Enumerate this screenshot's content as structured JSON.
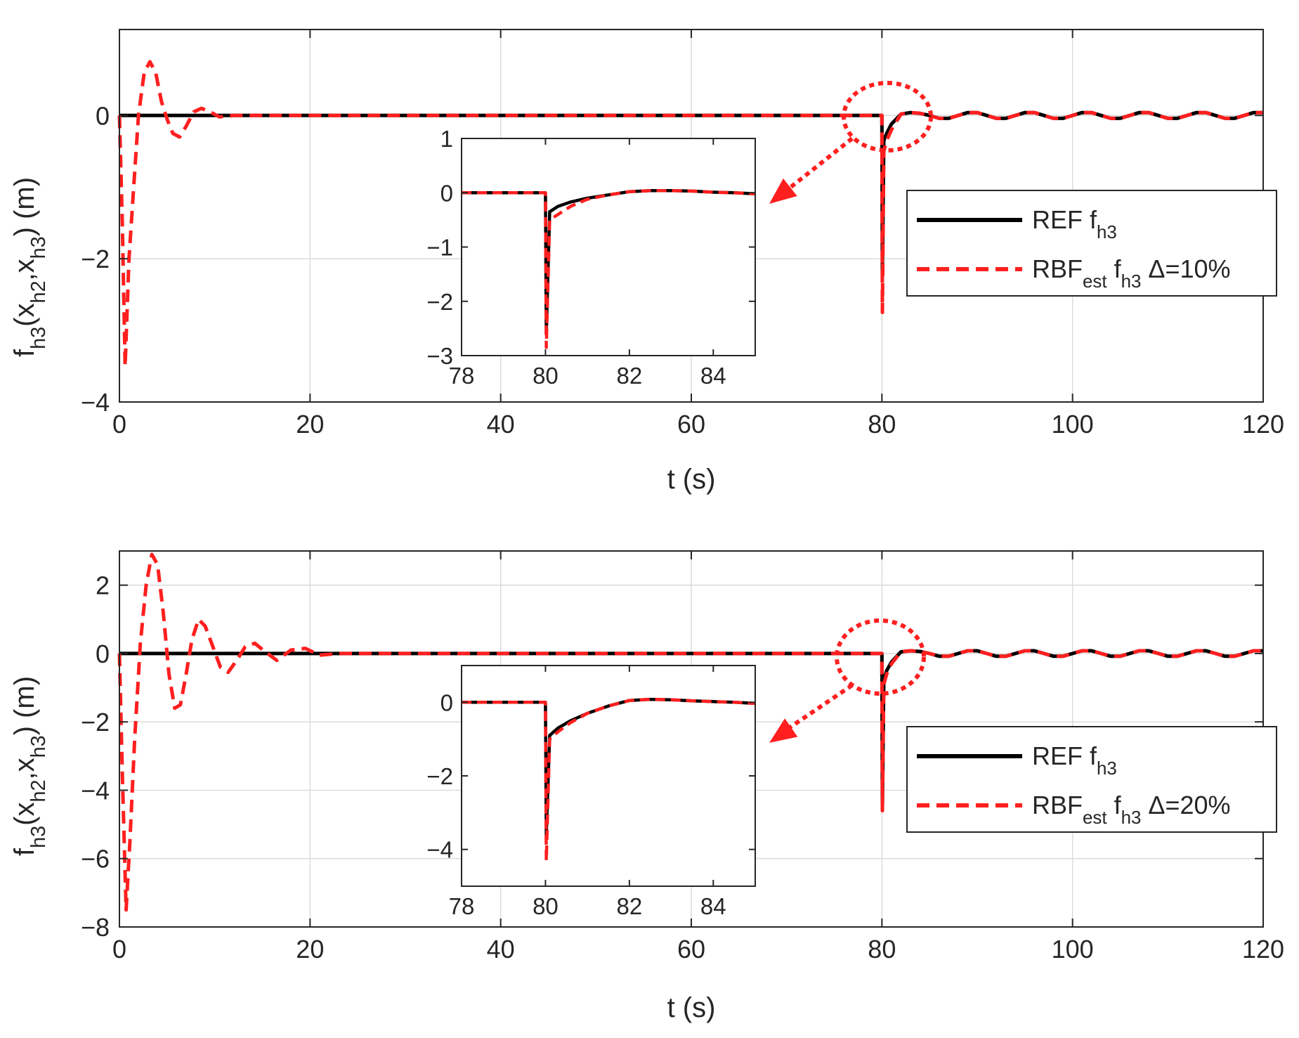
{
  "colors": {
    "ref": "#000000",
    "est": "#ff1f1f",
    "axis": "#262626",
    "grid": "#d9d9d9"
  },
  "chart_data": [
    {
      "type": "line",
      "panel": "top",
      "xlabel": "t (s)",
      "ylabel": {
        "main": "f",
        "sub1": "h3",
        "mid1": "(x",
        "sub2": "h2",
        "mid2": ",x",
        "sub3": "h3",
        "tail": ") (m)"
      },
      "xlim": [
        0,
        120
      ],
      "ylim": [
        -4,
        1.2
      ],
      "xticks": [
        0,
        20,
        40,
        60,
        80,
        100,
        120
      ],
      "yticks": [
        -4,
        -2,
        0
      ],
      "xtick_labels": [
        "0",
        "20",
        "40",
        "60",
        "80",
        "100",
        "120"
      ],
      "ytick_labels": [
        "−4",
        "−2",
        "0"
      ],
      "grid": true,
      "legend": {
        "placement": "right",
        "items": [
          {
            "key": "ref",
            "main": "REF f",
            "sub": "h3",
            "tail": ""
          },
          {
            "key": "est",
            "main": "RBF",
            "sub": "est",
            "main2": " f",
            "sub2": "h3",
            "tail": " Δ=10%"
          }
        ]
      },
      "series": [
        {
          "key": "ref",
          "name": "REF f_h3",
          "style": "solid",
          "x": [
            0,
            79.9,
            80.0,
            80.05,
            80.2,
            80.5,
            81,
            82,
            83,
            84,
            85,
            86,
            87,
            88,
            89,
            90,
            91,
            92,
            93,
            94,
            95,
            96,
            97,
            98,
            99,
            100,
            101,
            102,
            103,
            104,
            105,
            106,
            107,
            108,
            109,
            110,
            111,
            112,
            113,
            114,
            115,
            116,
            117,
            118,
            119,
            120
          ],
          "y": [
            0,
            0,
            0,
            -2.2,
            -0.35,
            -0.25,
            -0.12,
            0.02,
            0.04,
            0.03,
            0.0,
            -0.04,
            -0.04,
            0.0,
            0.04,
            0.04,
            0.0,
            -0.04,
            -0.04,
            0.0,
            0.04,
            0.04,
            0.0,
            -0.04,
            -0.04,
            0.0,
            0.04,
            0.04,
            0.0,
            -0.04,
            -0.04,
            0.0,
            0.04,
            0.04,
            0.0,
            -0.04,
            -0.04,
            0.0,
            0.04,
            0.04,
            0.0,
            -0.04,
            -0.04,
            0.0,
            0.04,
            0.04
          ]
        },
        {
          "key": "est",
          "name": "RBF_est f_h3 Δ=10%",
          "style": "dashed",
          "x": [
            0,
            0.3,
            0.6,
            1.0,
            1.5,
            2.0,
            2.6,
            3.2,
            3.8,
            4.4,
            5.0,
            5.6,
            6.3,
            7.0,
            7.8,
            8.6,
            9.5,
            10.5,
            12,
            14,
            79.9,
            80.0,
            80.05,
            80.2,
            80.5,
            81,
            82,
            83,
            84,
            85,
            86,
            87,
            88,
            89,
            90,
            91,
            92,
            93,
            94,
            95,
            96,
            97,
            98,
            99,
            100,
            101,
            102,
            103,
            104,
            105,
            106,
            107,
            108,
            109,
            110,
            111,
            112,
            113,
            114,
            115,
            116,
            117,
            118,
            119,
            120
          ],
          "y": [
            0,
            -1.5,
            -3.5,
            -2.0,
            -1.0,
            0.0,
            0.6,
            0.75,
            0.6,
            0.2,
            -0.05,
            -0.25,
            -0.3,
            -0.15,
            0.05,
            0.1,
            0.05,
            -0.02,
            0.0,
            0.0,
            0.0,
            0.0,
            -2.75,
            -0.5,
            -0.35,
            -0.2,
            0.02,
            0.04,
            0.03,
            0.0,
            -0.04,
            -0.04,
            0.0,
            0.04,
            0.04,
            0.0,
            -0.04,
            -0.04,
            0.0,
            0.04,
            0.04,
            0.0,
            -0.04,
            -0.04,
            0.0,
            0.04,
            0.04,
            0.0,
            -0.04,
            -0.04,
            0.0,
            0.04,
            0.04,
            0.0,
            -0.04,
            -0.04,
            0.0,
            0.04,
            0.04,
            0.0,
            -0.04,
            -0.04,
            0.0,
            0.04,
            0.04
          ]
        }
      ],
      "inset": {
        "xlim": [
          78,
          85
        ],
        "ylim": [
          -3,
          1
        ],
        "xticks": [
          78,
          80,
          82,
          84
        ],
        "yticks": [
          -3,
          -2,
          -1,
          0,
          1
        ],
        "xtick_labels": [
          "78",
          "80",
          "82",
          "84"
        ],
        "ytick_labels": [
          "−3",
          "−2",
          "−1",
          "0",
          "1"
        ],
        "series": [
          {
            "key": "ref",
            "x": [
              78,
              79.98,
              80.0,
              80.02,
              80.1,
              80.3,
              80.6,
              81.0,
              81.5,
              82.0,
              82.5,
              83.0,
              83.5,
              84.0,
              84.5,
              85.0
            ],
            "y": [
              0,
              0,
              0,
              -2.6,
              -0.35,
              -0.25,
              -0.17,
              -0.1,
              -0.04,
              0.02,
              0.04,
              0.04,
              0.03,
              0.01,
              0.0,
              -0.02
            ]
          },
          {
            "key": "est",
            "x": [
              78,
              79.98,
              80.0,
              80.02,
              80.1,
              80.3,
              80.6,
              81.0,
              81.5,
              82.0,
              82.5,
              83.0,
              83.5,
              84.0,
              84.5,
              85.0
            ],
            "y": [
              0,
              0,
              0,
              -2.85,
              -0.5,
              -0.4,
              -0.25,
              -0.12,
              -0.04,
              0.02,
              0.04,
              0.04,
              0.03,
              0.01,
              0.0,
              -0.02
            ]
          }
        ]
      }
    },
    {
      "type": "line",
      "panel": "bottom",
      "xlabel": "t (s)",
      "ylabel": {
        "main": "f",
        "sub1": "h3",
        "mid1": "(x",
        "sub2": "h2",
        "mid2": ",x",
        "sub3": "h3",
        "tail": ") (m)"
      },
      "xlim": [
        0,
        120
      ],
      "ylim": [
        -8,
        3
      ],
      "xticks": [
        0,
        20,
        40,
        60,
        80,
        100,
        120
      ],
      "yticks": [
        -8,
        -6,
        -4,
        -2,
        0,
        2
      ],
      "xtick_labels": [
        "0",
        "20",
        "40",
        "60",
        "80",
        "100",
        "120"
      ],
      "ytick_labels": [
        "−8",
        "−6",
        "−4",
        "−2",
        "0",
        "2"
      ],
      "grid": true,
      "legend": {
        "placement": "right",
        "items": [
          {
            "key": "ref",
            "main": "REF f",
            "sub": "h3",
            "tail": ""
          },
          {
            "key": "est",
            "main": "RBF",
            "sub": "est",
            "main2": " f",
            "sub2": "h3",
            "tail": " Δ=20%"
          }
        ]
      },
      "series": [
        {
          "key": "ref",
          "name": "REF f_h3",
          "style": "solid",
          "x": [
            0,
            79.9,
            80.0,
            80.05,
            80.2,
            80.5,
            81,
            82,
            83,
            84,
            85,
            86,
            87,
            88,
            89,
            90,
            91,
            92,
            93,
            94,
            95,
            96,
            97,
            98,
            99,
            100,
            101,
            102,
            103,
            104,
            105,
            106,
            107,
            108,
            109,
            110,
            111,
            112,
            113,
            114,
            115,
            116,
            117,
            118,
            119,
            120
          ],
          "y": [
            0,
            0,
            0,
            -4.5,
            -0.8,
            -0.5,
            -0.25,
            0.05,
            0.08,
            0.06,
            0.0,
            -0.08,
            -0.08,
            0.0,
            0.08,
            0.08,
            0.0,
            -0.08,
            -0.08,
            0.0,
            0.08,
            0.08,
            0.0,
            -0.08,
            -0.08,
            0.0,
            0.08,
            0.08,
            0.0,
            -0.08,
            -0.08,
            0.0,
            0.08,
            0.08,
            0.0,
            -0.08,
            -0.08,
            0.0,
            0.08,
            0.08,
            0.0,
            -0.08,
            -0.08,
            0.0,
            0.08,
            0.08
          ]
        },
        {
          "key": "est",
          "name": "RBF_est f_h3 Δ=20%",
          "style": "dashed",
          "x": [
            0,
            0.3,
            0.7,
            1.1,
            1.6,
            2.2,
            2.8,
            3.4,
            4.0,
            4.6,
            5.2,
            5.8,
            6.4,
            7.0,
            7.6,
            8.3,
            9.0,
            9.8,
            10.6,
            11.4,
            12.3,
            13.2,
            14.2,
            15.3,
            16.5,
            18,
            19.5,
            21,
            23,
            25,
            79.9,
            80.0,
            80.05,
            80.2,
            80.5,
            81,
            82,
            83,
            84,
            85,
            86,
            87,
            88,
            89,
            90,
            91,
            92,
            93,
            94,
            95,
            96,
            97,
            98,
            99,
            100,
            101,
            102,
            103,
            104,
            105,
            106,
            107,
            108,
            109,
            110,
            111,
            112,
            113,
            114,
            115,
            116,
            117,
            118,
            119,
            120
          ],
          "y": [
            0,
            -3.5,
            -7.5,
            -5.5,
            -2.5,
            0.3,
            2.0,
            2.9,
            2.6,
            1.2,
            -0.6,
            -1.6,
            -1.5,
            -0.6,
            0.4,
            1.0,
            0.8,
            0.2,
            -0.4,
            -0.55,
            -0.2,
            0.2,
            0.3,
            0.05,
            -0.2,
            0.1,
            0.15,
            -0.05,
            0.0,
            0.0,
            0.0,
            0.0,
            -4.6,
            -0.9,
            -0.6,
            -0.3,
            0.05,
            0.08,
            0.06,
            0.0,
            -0.08,
            -0.08,
            0.0,
            0.08,
            0.08,
            0.0,
            -0.08,
            -0.08,
            0.0,
            0.08,
            0.08,
            0.0,
            -0.08,
            -0.08,
            0.0,
            0.08,
            0.08,
            0.0,
            -0.08,
            -0.08,
            0.0,
            0.08,
            0.08,
            0.0,
            -0.08,
            -0.08,
            0.0,
            0.08,
            0.08,
            0.0,
            -0.08,
            -0.08,
            0.0,
            0.08,
            0.08
          ]
        }
      ],
      "inset": {
        "xlim": [
          78,
          85
        ],
        "ylim": [
          -5,
          1
        ],
        "xticks": [
          78,
          80,
          82,
          84
        ],
        "yticks": [
          -4,
          -2,
          0
        ],
        "xtick_labels": [
          "78",
          "80",
          "82",
          "84"
        ],
        "ytick_labels": [
          "−4",
          "−2",
          "0"
        ],
        "series": [
          {
            "key": "ref",
            "x": [
              78,
              79.98,
              80.0,
              80.02,
              80.1,
              80.3,
              80.6,
              81.0,
              81.5,
              82.0,
              82.5,
              83.0,
              83.5,
              84.0,
              84.5,
              85.0
            ],
            "y": [
              0,
              0,
              0,
              -3.6,
              -0.9,
              -0.7,
              -0.5,
              -0.3,
              -0.1,
              0.05,
              0.08,
              0.07,
              0.04,
              0.02,
              0.0,
              -0.03
            ]
          },
          {
            "key": "est",
            "x": [
              78,
              79.98,
              80.0,
              80.02,
              80.1,
              80.3,
              80.6,
              81.0,
              81.5,
              82.0,
              82.5,
              83.0,
              83.5,
              84.0,
              84.5,
              85.0
            ],
            "y": [
              0,
              0,
              0,
              -4.3,
              -1.0,
              -0.8,
              -0.55,
              -0.3,
              -0.1,
              0.05,
              0.08,
              0.07,
              0.04,
              0.02,
              0.0,
              -0.03
            ]
          }
        ]
      }
    }
  ]
}
